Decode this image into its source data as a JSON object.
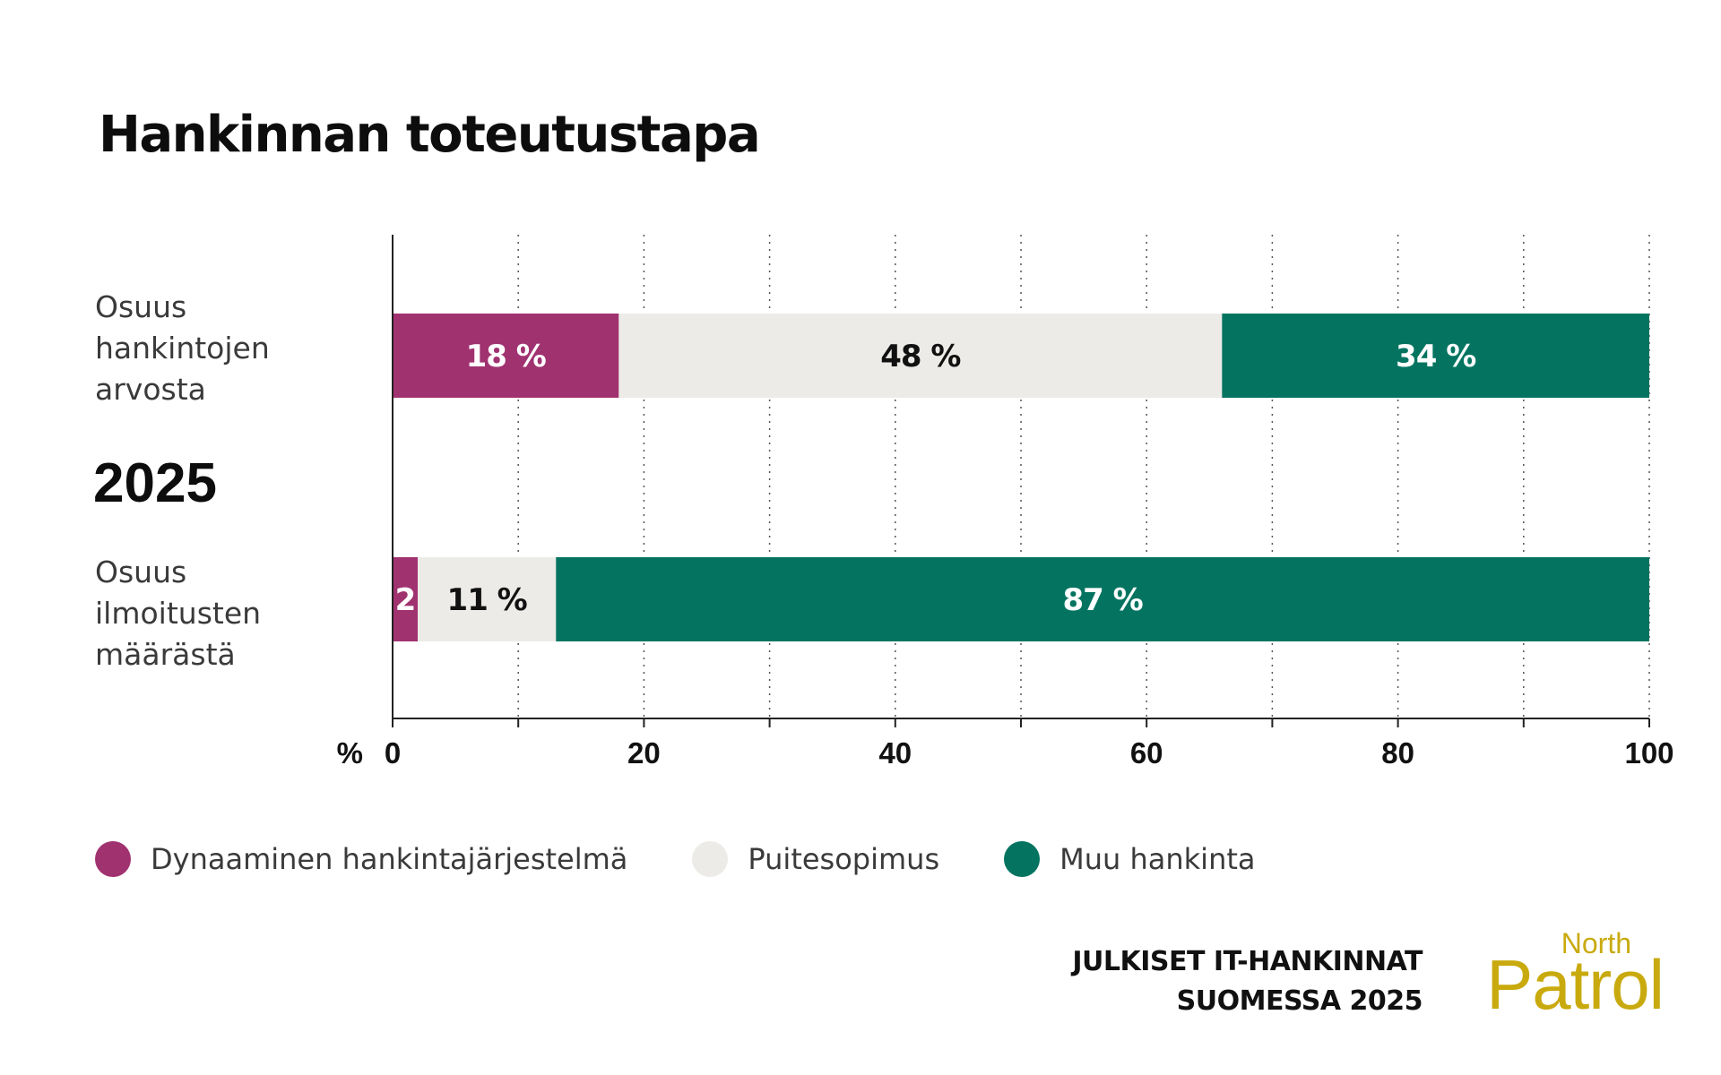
{
  "title": "Hankinnan toteutustapa",
  "year": "2025",
  "footer": {
    "line1": "JULKISET IT-HANKINNAT",
    "line2": "SUOMESSA 2025"
  },
  "logo": {
    "small": "North",
    "big": "Patrol",
    "color": "#C9AA0E"
  },
  "colors": {
    "dynamic": "#A03270",
    "framework": "#ECEBE7",
    "other": "#047461"
  },
  "chart_data": {
    "type": "bar",
    "orientation": "horizontal",
    "stacked": true,
    "categories": [
      "Osuus\nhankintojen\narvosta",
      "Osuus\nilmoitusten\nmäärästä"
    ],
    "series": [
      {
        "name": "Dynaaminen hankintajärjestelmä",
        "values": [
          18,
          2
        ],
        "labels": [
          "18 %",
          "2"
        ],
        "color": "#A03270",
        "label_color": "#ffffff"
      },
      {
        "name": "Puitesopimus",
        "values": [
          48,
          11
        ],
        "labels": [
          "48 %",
          "11 %"
        ],
        "color": "#ECEBE7",
        "label_color": "#111111"
      },
      {
        "name": "Muu hankinta",
        "values": [
          34,
          87
        ],
        "labels": [
          "34 %",
          "87 %"
        ],
        "color": "#047461",
        "label_color": "#ffffff"
      }
    ],
    "x_unit": "%",
    "xlim": [
      0,
      100
    ],
    "x_ticks": [
      0,
      20,
      40,
      60,
      80,
      100
    ],
    "grid": "vertical dotted every 10",
    "legend": "bottom"
  }
}
